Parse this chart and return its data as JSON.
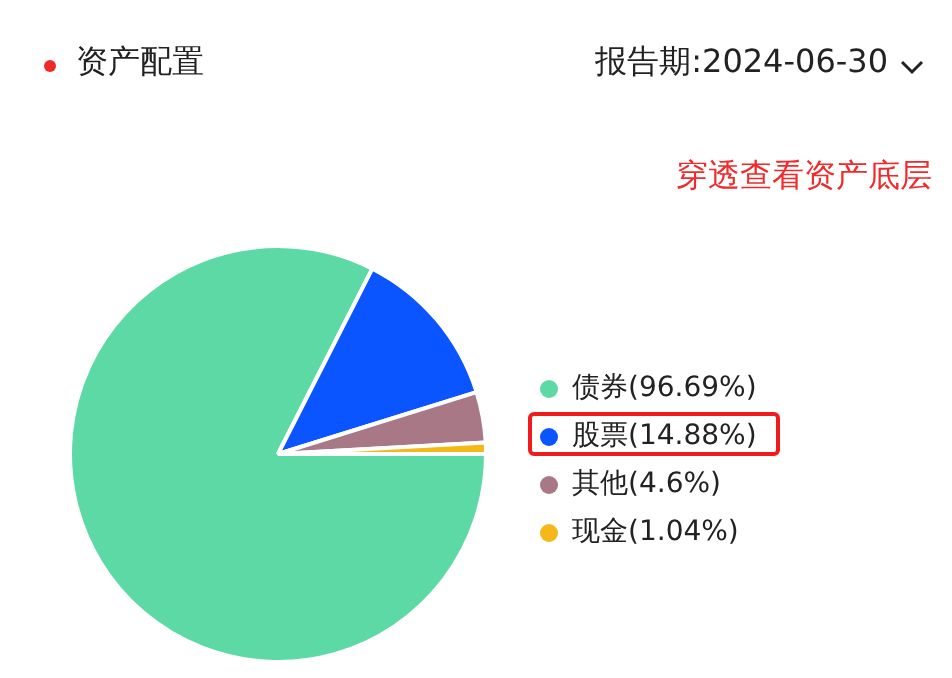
{
  "chart_data": {
    "type": "pie",
    "title": "资产配置",
    "subtitle": "报告期:2024-06-30",
    "annotations": [
      "穿透查看资产底层"
    ],
    "categories": [
      "债券",
      "股票",
      "其他",
      "现金"
    ],
    "values": [
      96.69,
      14.88,
      4.6,
      1.04
    ],
    "value_labels": [
      "(96.69%)",
      "(14.88%)",
      "(4.6%)",
      "(1.04%)"
    ],
    "colors": [
      "#5dd9a6",
      "#0a55ff",
      "#a87887",
      "#f5b818"
    ],
    "legend": "right"
  }
}
